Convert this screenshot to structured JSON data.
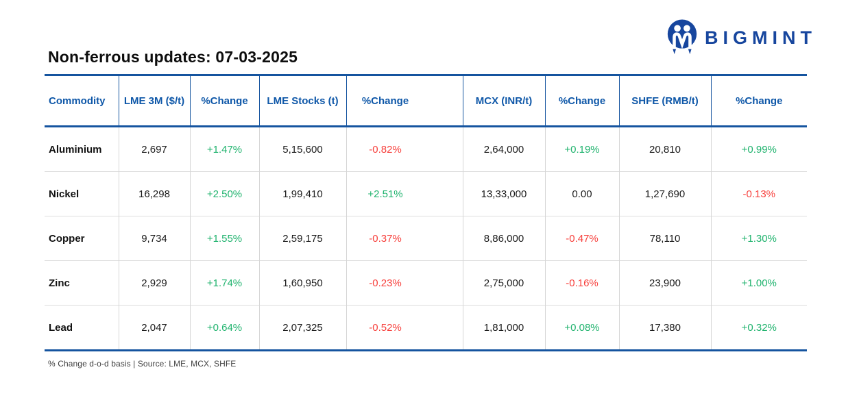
{
  "brand": {
    "name": "BIGMINT",
    "logo_icon": "bigmint-m-mark",
    "brand_color": "#17469e"
  },
  "title": "Non-ferrous updates: 07-03-2025",
  "footer": {
    "note": "% Change d-o-d basis | Source: LME, MCX, SHFE"
  },
  "colors": {
    "positive": "#20b36e",
    "negative": "#f7413d",
    "neutral": "#1b1b1b",
    "header_text": "#0e57a8",
    "table_border": "#15549f",
    "note_gray": "#3f3f3f"
  },
  "chart_data": {
    "type": "table",
    "title": "Non-ferrous updates: 07-03-2025",
    "columns": [
      "Commodity",
      "LME 3M ($/t)",
      "%Change",
      "LME Stocks (t)",
      "%Change",
      "MCX (INR/t)",
      "%Change",
      "SHFE (RMB/t)",
      "%Change"
    ],
    "rows": [
      [
        "Aluminium",
        "2,697",
        "+1.47%",
        "5,15,600",
        "-0.82%",
        "2,64,000",
        "+0.19%",
        "20,810",
        "+0.99%"
      ],
      [
        "Nickel",
        "16,298",
        "+2.50%",
        "1,99,410",
        "+2.51%",
        "13,33,000",
        "0.00",
        "1,27,690",
        "-0.13%"
      ],
      [
        "Copper",
        "9,734",
        "+1.55%",
        "2,59,175",
        "-0.37%",
        "8,86,000",
        "-0.47%",
        "78,110",
        "+1.30%"
      ],
      [
        "Zinc",
        "2,929",
        "+1.74%",
        "1,60,950",
        "-0.23%",
        "2,75,000",
        "-0.16%",
        "23,900",
        "+1.00%"
      ],
      [
        "Lead",
        "2,047",
        "+0.64%",
        "2,07,325",
        "-0.52%",
        "1,81,000",
        "+0.08%",
        "17,380",
        "+0.32%"
      ]
    ],
    "notes": "Change cells colored green when positive, red when negative, black when flat"
  }
}
